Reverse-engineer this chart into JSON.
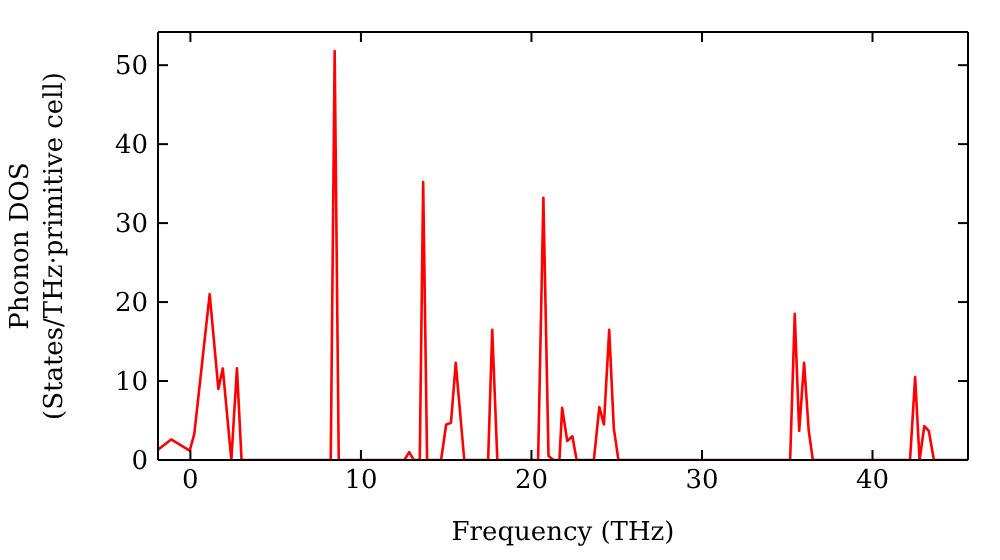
{
  "chart_data": {
    "type": "line",
    "xlabel": "Frequency (THz)",
    "ylabel": "Phonon DOS\n(States/THz·primitive cell)",
    "series": [
      {
        "color": "#ff0000",
        "x": [
          -1.9,
          -1.13,
          -0.04,
          0.23,
          1.13,
          1.64,
          1.9,
          2.4,
          2.73,
          3.0,
          8.23,
          8.46,
          8.7,
          12.55,
          12.83,
          13.1,
          13.45,
          13.65,
          13.88,
          14.7,
          15.0,
          15.28,
          15.56,
          16.06,
          17.46,
          17.7,
          18.0,
          20.39,
          20.7,
          21.0,
          21.3,
          21.64,
          21.8,
          22.1,
          22.4,
          22.65,
          23.66,
          23.98,
          24.25,
          24.56,
          24.83,
          25.1,
          35.17,
          35.44,
          35.7,
          35.99,
          36.26,
          36.5,
          42.2,
          42.5,
          42.76,
          43.04,
          43.3,
          43.6,
          45.6
        ],
        "values": [
          1.3,
          2.6,
          1.2,
          3.3,
          21,
          9,
          11.6,
          0,
          11.6,
          0,
          0,
          51.8,
          0,
          0,
          1,
          0,
          0,
          35.2,
          0,
          0,
          4.5,
          4.7,
          12.3,
          0,
          0,
          16.5,
          0,
          0,
          33.2,
          0.5,
          0,
          0,
          6.6,
          2.4,
          3,
          0,
          0,
          6.7,
          4.5,
          16.5,
          4,
          0,
          0,
          18.5,
          3.7,
          12.3,
          3.7,
          0,
          0,
          10.5,
          0,
          4.3,
          3.7,
          0,
          0
        ]
      }
    ],
    "xlim": [
      -1.9,
      45.6
    ],
    "xticks": [
      0,
      10,
      20,
      30,
      40
    ],
    "ylim": [
      0,
      54.2
    ],
    "yticks": [
      0,
      10,
      20,
      30,
      40,
      50
    ],
    "grid": false,
    "marker": "none",
    "line_style": "solid"
  }
}
